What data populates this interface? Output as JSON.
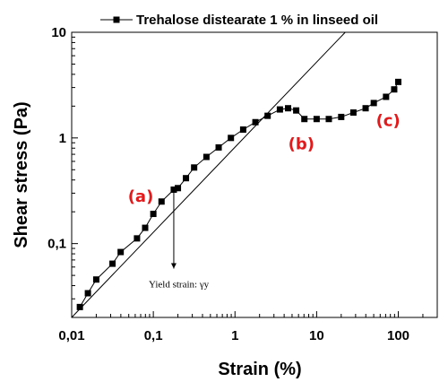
{
  "chart_data": {
    "type": "scatter",
    "xlabel": "Strain (%)",
    "ylabel": "Shear stress (Pa)",
    "x_scale": "log",
    "y_scale": "log",
    "xlim": [
      0.01,
      300
    ],
    "ylim": [
      0.02,
      10
    ],
    "x_ticks": [
      {
        "value": 0.01,
        "label": "0,01"
      },
      {
        "value": 0.1,
        "label": "0,1"
      },
      {
        "value": 1,
        "label": "1"
      },
      {
        "value": 10,
        "label": "10"
      },
      {
        "value": 100,
        "label": "100"
      }
    ],
    "y_ticks": [
      {
        "value": 0.1,
        "label": "0,1"
      },
      {
        "value": 1,
        "label": "1"
      },
      {
        "value": 10,
        "label": "10"
      }
    ],
    "grid": false,
    "legend": {
      "position": "top",
      "entries": [
        "Trehalose distearate 1 % in linseed oil"
      ]
    },
    "series": [
      {
        "name": "Trehalose distearate 1 % in linseed oil",
        "marker": "square",
        "color": "#000000",
        "points": [
          [
            0.0126,
            0.0251
          ],
          [
            0.0158,
            0.0339
          ],
          [
            0.02,
            0.0457
          ],
          [
            0.0316,
            0.0645
          ],
          [
            0.0398,
            0.0832
          ],
          [
            0.0631,
            0.112
          ],
          [
            0.0794,
            0.141
          ],
          [
            0.1,
            0.191
          ],
          [
            0.126,
            0.25
          ],
          [
            0.178,
            0.324
          ],
          [
            0.2,
            0.335
          ],
          [
            0.251,
            0.416
          ],
          [
            0.316,
            0.525
          ],
          [
            0.447,
            0.661
          ],
          [
            0.631,
            0.813
          ],
          [
            0.891,
            1.0
          ],
          [
            1.26,
            1.2
          ],
          [
            1.78,
            1.41
          ],
          [
            2.51,
            1.62
          ],
          [
            3.55,
            1.86
          ],
          [
            4.47,
            1.91
          ],
          [
            5.62,
            1.82
          ],
          [
            7.08,
            1.51
          ],
          [
            10.0,
            1.51
          ],
          [
            14.1,
            1.51
          ],
          [
            20.0,
            1.58
          ],
          [
            28.2,
            1.74
          ],
          [
            39.8,
            1.91
          ],
          [
            50.1,
            2.14
          ],
          [
            70.8,
            2.45
          ],
          [
            89.1,
            2.88
          ],
          [
            100,
            3.39
          ]
        ]
      }
    ],
    "reference_line": {
      "from": [
        0.01,
        0.02
      ],
      "to": [
        22.4,
        10
      ]
    },
    "annotations": [
      {
        "text": "(a)",
        "color": "#e31a1c",
        "x": 0.07,
        "y": 0.25
      },
      {
        "text": "(b)",
        "color": "#e31a1c",
        "x": 6.5,
        "y": 0.78
      },
      {
        "text": "(c)",
        "color": "#e31a1c",
        "x": 75,
        "y": 1.3
      }
    ],
    "yield_arrow": {
      "x": 0.178,
      "y_from": 0.33,
      "y_to": 0.058,
      "label": "Yield strain: γy"
    }
  }
}
